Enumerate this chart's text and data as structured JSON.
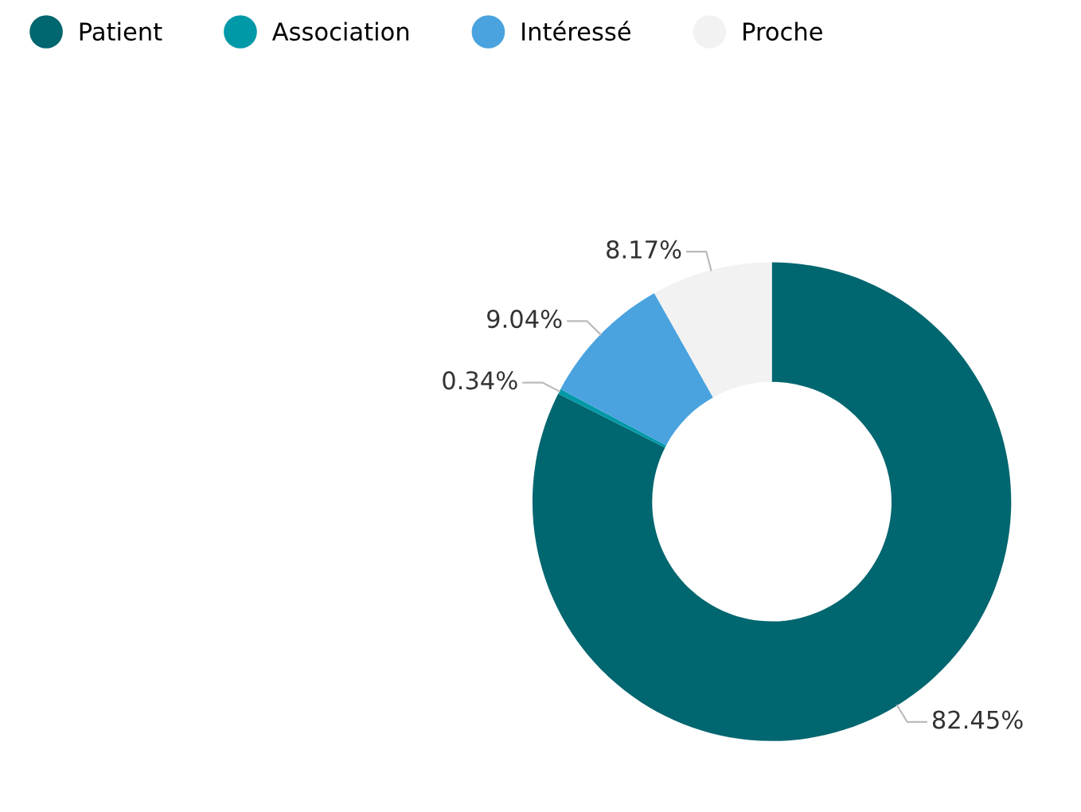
{
  "chart_data": {
    "type": "donut",
    "categories": [
      "Patient",
      "Association",
      "Intéressé",
      "Proche"
    ],
    "values": [
      82.45,
      0.34,
      9.04,
      8.17
    ],
    "colors": [
      "#00666f",
      "#0099a8",
      "#4aa3df",
      "#f2f2f2"
    ],
    "value_labels": [
      "82.45%",
      "0.34%",
      "9.04%",
      "8.17%"
    ],
    "legend": "top left"
  }
}
